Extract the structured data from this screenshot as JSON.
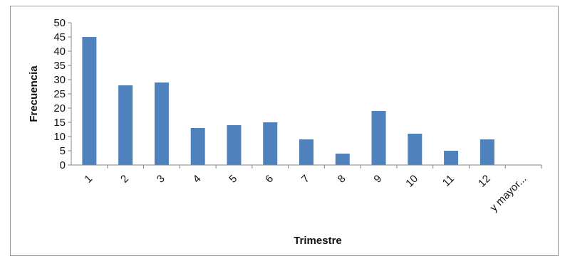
{
  "chart_data": {
    "type": "bar",
    "title": "",
    "xlabel": "Trimestre",
    "ylabel": "Frecuencia",
    "categories": [
      "1",
      "2",
      "3",
      "4",
      "5",
      "6",
      "7",
      "8",
      "9",
      "10",
      "11",
      "12",
      "y mayor..."
    ],
    "values": [
      45,
      28,
      29,
      13,
      14,
      15,
      9,
      4,
      19,
      11,
      5,
      9,
      0
    ],
    "ylim": [
      0,
      50
    ],
    "yticks": [
      "0",
      "5",
      "10",
      "15",
      "20",
      "25",
      "30",
      "35",
      "40",
      "45",
      "50"
    ],
    "grid": false,
    "legend": "none",
    "bar_color": "#4F81BD"
  }
}
